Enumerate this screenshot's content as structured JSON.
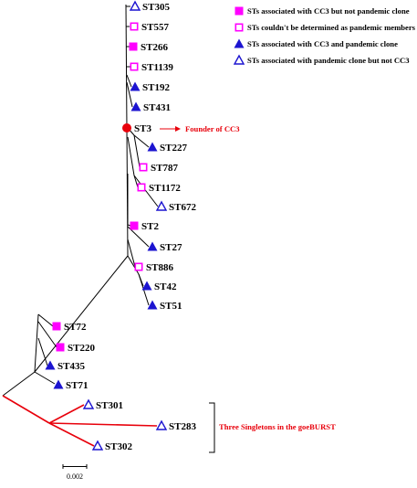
{
  "colors": {
    "magenta": "#ff00ff",
    "blue": "#1c14d0",
    "red": "#e8000b",
    "branch": "#000000"
  },
  "legend": [
    {
      "marker": "magenta-filled-square",
      "text": "STs associated with CC3 but not pandemic clone"
    },
    {
      "marker": "magenta-open-square",
      "text": "STs couldn't be determined as pandemic members"
    },
    {
      "marker": "blue-filled-triangle",
      "text": "STs associated with CC3 and pandemic clone"
    },
    {
      "marker": "blue-open-triangle",
      "text": "STs associated with  pandemic clone but not CC3"
    }
  ],
  "leaves": [
    {
      "id": "ST305",
      "label": "ST305",
      "marker": "blue-open-triangle"
    },
    {
      "id": "ST557",
      "label": "ST557",
      "marker": "magenta-open-square"
    },
    {
      "id": "ST266",
      "label": "ST266",
      "marker": "magenta-filled-square"
    },
    {
      "id": "ST1139",
      "label": "ST1139",
      "marker": "magenta-open-square"
    },
    {
      "id": "ST192",
      "label": "ST192",
      "marker": "blue-filled-triangle"
    },
    {
      "id": "ST431",
      "label": "ST431",
      "marker": "blue-filled-triangle"
    },
    {
      "id": "ST3",
      "label": "ST3",
      "marker": "red-filled-circle"
    },
    {
      "id": "ST227",
      "label": "ST227",
      "marker": "blue-filled-triangle"
    },
    {
      "id": "ST787",
      "label": "ST787",
      "marker": "magenta-open-square"
    },
    {
      "id": "ST1172",
      "label": "ST1172",
      "marker": "magenta-open-square"
    },
    {
      "id": "ST672",
      "label": "ST672",
      "marker": "blue-open-triangle"
    },
    {
      "id": "ST2",
      "label": "ST2",
      "marker": "magenta-filled-square"
    },
    {
      "id": "ST27",
      "label": "ST27",
      "marker": "blue-filled-triangle"
    },
    {
      "id": "ST886",
      "label": "ST886",
      "marker": "magenta-open-square"
    },
    {
      "id": "ST42",
      "label": "ST42",
      "marker": "blue-filled-triangle"
    },
    {
      "id": "ST51",
      "label": "ST51",
      "marker": "blue-filled-triangle"
    },
    {
      "id": "ST72",
      "label": "ST72",
      "marker": "magenta-filled-square"
    },
    {
      "id": "ST220",
      "label": "ST220",
      "marker": "magenta-filled-square"
    },
    {
      "id": "ST435",
      "label": "ST435",
      "marker": "blue-filled-triangle"
    },
    {
      "id": "ST71",
      "label": "ST71",
      "marker": "blue-filled-triangle"
    },
    {
      "id": "ST301",
      "label": "ST301",
      "marker": "blue-open-triangle"
    },
    {
      "id": "ST283",
      "label": "ST283",
      "marker": "blue-open-triangle"
    },
    {
      "id": "ST302",
      "label": "ST302",
      "marker": "blue-open-triangle"
    }
  ],
  "founder_note": "Founder of CC3",
  "singletons_note": "Three Singletons in the goeBURST",
  "scale_bar": {
    "label": "0.002"
  }
}
